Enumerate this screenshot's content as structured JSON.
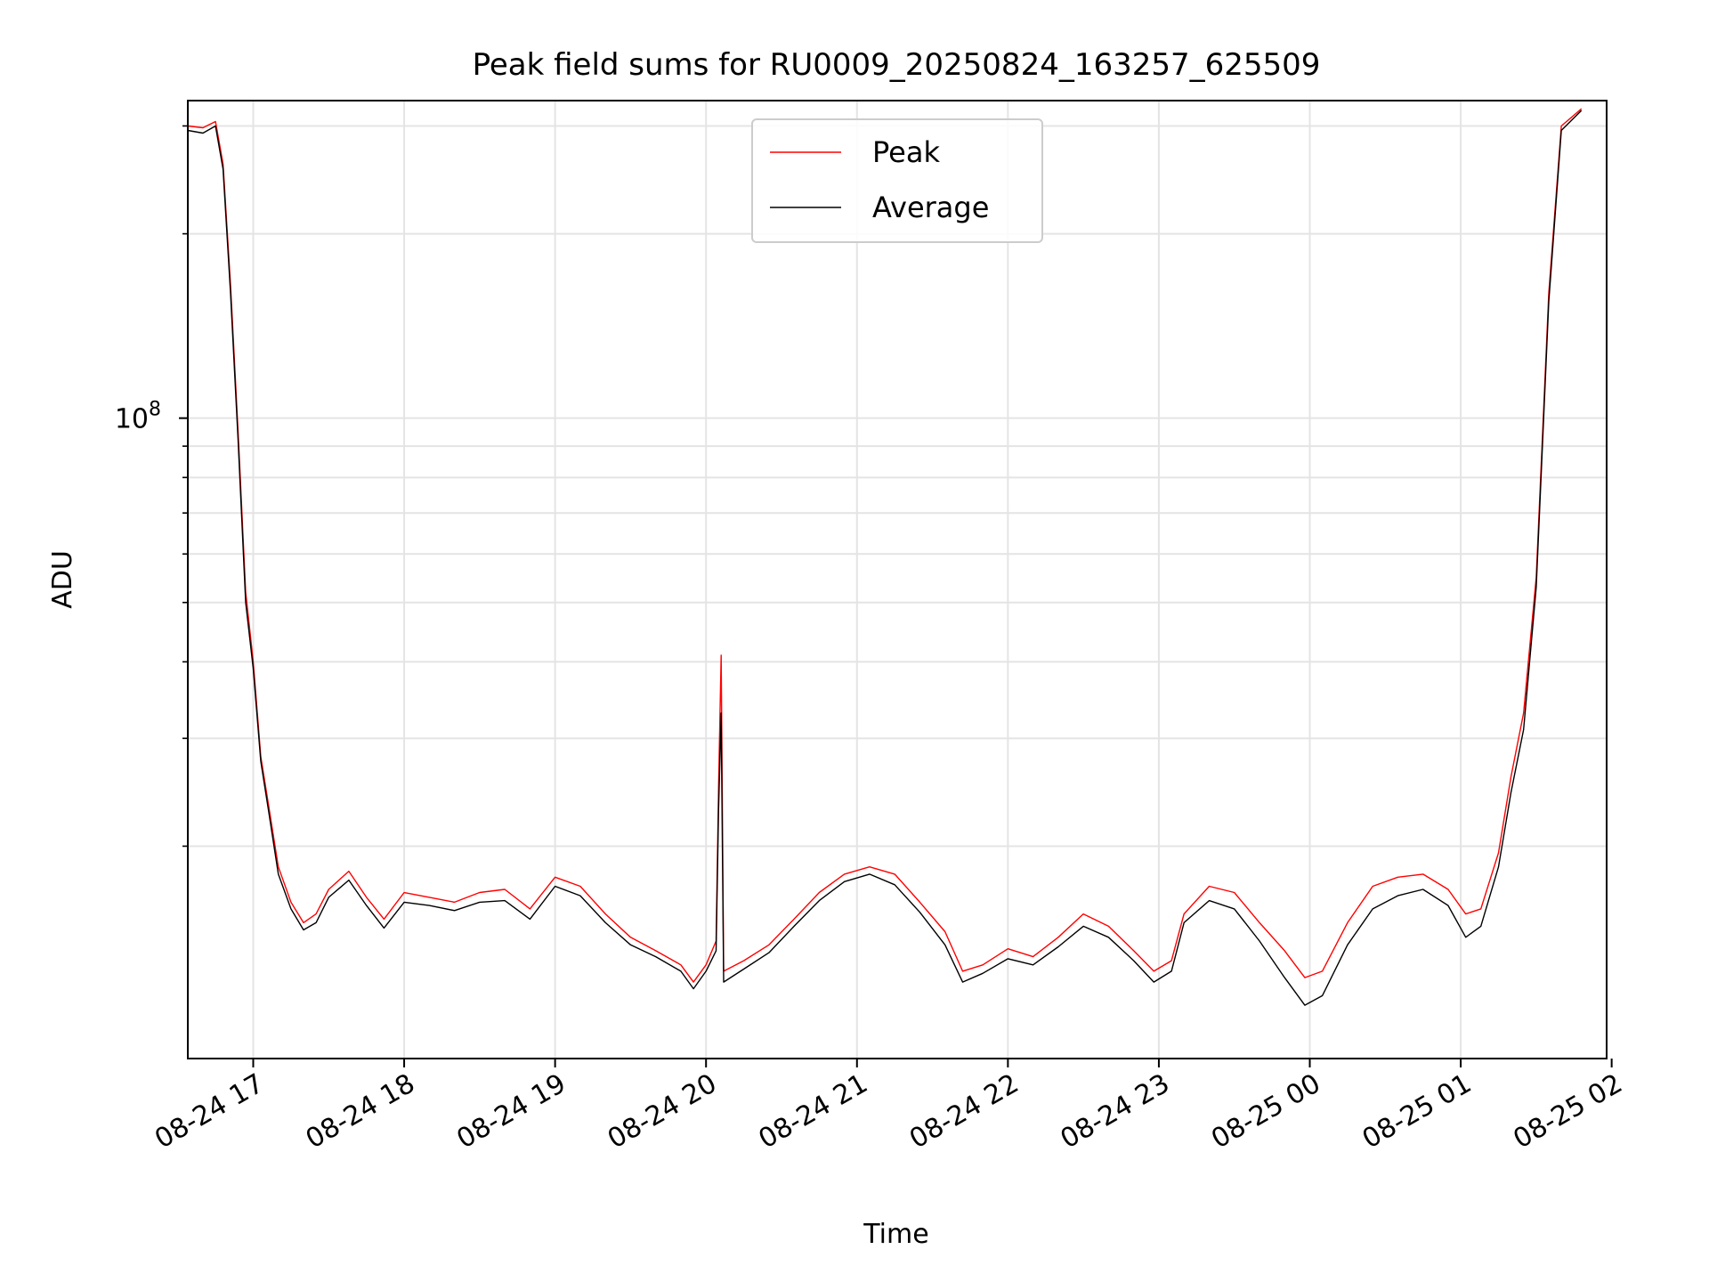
{
  "chart_data": {
    "type": "line",
    "title": "Peak field sums for RU0009_20250824_163257_625509",
    "xlabel": "Time",
    "ylabel": "ADU",
    "yscale": "log",
    "xlim": [
      "2025-08-24 16:34",
      "2025-08-25 01:58"
    ],
    "ylim": [
      9000000.0,
      330000000.0
    ],
    "x_ticks": [
      {
        "time": "2025-08-24 17:00",
        "label": "08-24 17"
      },
      {
        "time": "2025-08-24 18:00",
        "label": "08-24 18"
      },
      {
        "time": "2025-08-24 19:00",
        "label": "08-24 19"
      },
      {
        "time": "2025-08-24 20:00",
        "label": "08-24 20"
      },
      {
        "time": "2025-08-24 21:00",
        "label": "08-24 21"
      },
      {
        "time": "2025-08-24 22:00",
        "label": "08-24 22"
      },
      {
        "time": "2025-08-24 23:00",
        "label": "08-24 23"
      },
      {
        "time": "2025-08-25 00:00",
        "label": "08-25 00"
      },
      {
        "time": "2025-08-25 01:00",
        "label": "08-25 01"
      },
      {
        "time": "2025-08-25 02:00",
        "label": "08-25 02"
      }
    ],
    "y_major_ticks": [
      {
        "value": 100000000,
        "base": "10",
        "exp": "8"
      }
    ],
    "y_minor_ticks": [
      20000000,
      30000000,
      40000000,
      50000000,
      60000000,
      70000000,
      80000000,
      90000000,
      200000000,
      300000000
    ],
    "grid": true,
    "legend": "upper center",
    "series": [
      {
        "name": "Peak",
        "color": "#ff0000",
        "points": [
          [
            "2025-08-24 16:34",
            300000000.0
          ],
          [
            "2025-08-24 16:40",
            298000000.0
          ],
          [
            "2025-08-24 16:45",
            305000000.0
          ],
          [
            "2025-08-24 16:48",
            260000000.0
          ],
          [
            "2025-08-24 16:51",
            165000000.0
          ],
          [
            "2025-08-24 16:54",
            95000000.0
          ],
          [
            "2025-08-24 16:57",
            52000000.0
          ],
          [
            "2025-08-24 17:00",
            40000000.0
          ],
          [
            "2025-08-24 17:03",
            28000000.0
          ],
          [
            "2025-08-24 17:06",
            23500000.0
          ],
          [
            "2025-08-24 17:10",
            18500000.0
          ],
          [
            "2025-08-24 17:15",
            16200000.0
          ],
          [
            "2025-08-24 17:20",
            15000000.0
          ],
          [
            "2025-08-24 17:25",
            15500000.0
          ],
          [
            "2025-08-24 17:30",
            17000000.0
          ],
          [
            "2025-08-24 17:38",
            18200000.0
          ],
          [
            "2025-08-24 17:45",
            16500000.0
          ],
          [
            "2025-08-24 17:52",
            15200000.0
          ],
          [
            "2025-08-24 18:00",
            16800000.0
          ],
          [
            "2025-08-24 18:10",
            16500000.0
          ],
          [
            "2025-08-24 18:20",
            16200000.0
          ],
          [
            "2025-08-24 18:30",
            16800000.0
          ],
          [
            "2025-08-24 18:40",
            17000000.0
          ],
          [
            "2025-08-24 18:50",
            15800000.0
          ],
          [
            "2025-08-24 19:00",
            17800000.0
          ],
          [
            "2025-08-24 19:10",
            17200000.0
          ],
          [
            "2025-08-24 19:20",
            15500000.0
          ],
          [
            "2025-08-24 19:30",
            14200000.0
          ],
          [
            "2025-08-24 19:40",
            13500000.0
          ],
          [
            "2025-08-24 19:50",
            12800000.0
          ],
          [
            "2025-08-24 19:55",
            12000000.0
          ],
          [
            "2025-08-24 20:00",
            12800000.0
          ],
          [
            "2025-08-24 20:04",
            14000000.0
          ],
          [
            "2025-08-24 20:05",
            25000000.0
          ],
          [
            "2025-08-24 20:06",
            41000000.0
          ],
          [
            "2025-08-24 20:07",
            12500000.0
          ],
          [
            "2025-08-24 20:15",
            13000000.0
          ],
          [
            "2025-08-24 20:25",
            13800000.0
          ],
          [
            "2025-08-24 20:35",
            15200000.0
          ],
          [
            "2025-08-24 20:45",
            16800000.0
          ],
          [
            "2025-08-24 20:55",
            18000000.0
          ],
          [
            "2025-08-24 21:05",
            18500000.0
          ],
          [
            "2025-08-24 21:15",
            18000000.0
          ],
          [
            "2025-08-24 21:25",
            16200000.0
          ],
          [
            "2025-08-24 21:35",
            14500000.0
          ],
          [
            "2025-08-24 21:42",
            12500000.0
          ],
          [
            "2025-08-24 21:50",
            12800000.0
          ],
          [
            "2025-08-24 22:00",
            13600000.0
          ],
          [
            "2025-08-24 22:10",
            13200000.0
          ],
          [
            "2025-08-24 22:20",
            14200000.0
          ],
          [
            "2025-08-24 22:30",
            15500000.0
          ],
          [
            "2025-08-24 22:40",
            14800000.0
          ],
          [
            "2025-08-24 22:50",
            13500000.0
          ],
          [
            "2025-08-24 22:58",
            12500000.0
          ],
          [
            "2025-08-24 23:05",
            13000000.0
          ],
          [
            "2025-08-24 23:10",
            15500000.0
          ],
          [
            "2025-08-24 23:20",
            17200000.0
          ],
          [
            "2025-08-24 23:30",
            16800000.0
          ],
          [
            "2025-08-24 23:40",
            15000000.0
          ],
          [
            "2025-08-24 23:50",
            13500000.0
          ],
          [
            "2025-08-24 23:58",
            12200000.0
          ],
          [
            "2025-08-25 00:05",
            12500000.0
          ],
          [
            "2025-08-25 00:15",
            15000000.0
          ],
          [
            "2025-08-25 00:25",
            17200000.0
          ],
          [
            "2025-08-25 00:35",
            17800000.0
          ],
          [
            "2025-08-25 00:45",
            18000000.0
          ],
          [
            "2025-08-25 00:55",
            17000000.0
          ],
          [
            "2025-08-25 01:02",
            15500000.0
          ],
          [
            "2025-08-25 01:08",
            15800000.0
          ],
          [
            "2025-08-25 01:15",
            19500000.0
          ],
          [
            "2025-08-25 01:20",
            26000000.0
          ],
          [
            "2025-08-25 01:25",
            33000000.0
          ],
          [
            "2025-08-25 01:30",
            55000000.0
          ],
          [
            "2025-08-25 01:35",
            160000000.0
          ],
          [
            "2025-08-25 01:40",
            300000000.0
          ],
          [
            "2025-08-25 01:48",
            320000000.0
          ]
        ]
      },
      {
        "name": "Average",
        "color": "#000000",
        "points": [
          [
            "2025-08-24 16:34",
            295000000.0
          ],
          [
            "2025-08-24 16:40",
            292000000.0
          ],
          [
            "2025-08-24 16:45",
            300000000.0
          ],
          [
            "2025-08-24 16:48",
            255000000.0
          ],
          [
            "2025-08-24 16:51",
            160000000.0
          ],
          [
            "2025-08-24 16:54",
            92000000.0
          ],
          [
            "2025-08-24 16:57",
            50000000.0
          ],
          [
            "2025-08-24 17:00",
            39000000.0
          ],
          [
            "2025-08-24 17:03",
            27500000.0
          ],
          [
            "2025-08-24 17:06",
            23000000.0
          ],
          [
            "2025-08-24 17:10",
            18000000.0
          ],
          [
            "2025-08-24 17:15",
            15800000.0
          ],
          [
            "2025-08-24 17:20",
            14600000.0
          ],
          [
            "2025-08-24 17:25",
            15000000.0
          ],
          [
            "2025-08-24 17:30",
            16500000.0
          ],
          [
            "2025-08-24 17:38",
            17600000.0
          ],
          [
            "2025-08-24 17:45",
            16000000.0
          ],
          [
            "2025-08-24 17:52",
            14700000.0
          ],
          [
            "2025-08-24 18:00",
            16200000.0
          ],
          [
            "2025-08-24 18:10",
            16000000.0
          ],
          [
            "2025-08-24 18:20",
            15700000.0
          ],
          [
            "2025-08-24 18:30",
            16200000.0
          ],
          [
            "2025-08-24 18:40",
            16300000.0
          ],
          [
            "2025-08-24 18:50",
            15200000.0
          ],
          [
            "2025-08-24 19:00",
            17200000.0
          ],
          [
            "2025-08-24 19:10",
            16600000.0
          ],
          [
            "2025-08-24 19:20",
            15000000.0
          ],
          [
            "2025-08-24 19:30",
            13800000.0
          ],
          [
            "2025-08-24 19:40",
            13200000.0
          ],
          [
            "2025-08-24 19:50",
            12500000.0
          ],
          [
            "2025-08-24 19:55",
            11700000.0
          ],
          [
            "2025-08-24 20:00",
            12500000.0
          ],
          [
            "2025-08-24 20:04",
            13500000.0
          ],
          [
            "2025-08-24 20:05",
            23000000.0
          ],
          [
            "2025-08-24 20:06",
            33000000.0
          ],
          [
            "2025-08-24 20:07",
            12000000.0
          ],
          [
            "2025-08-24 20:15",
            12600000.0
          ],
          [
            "2025-08-24 20:25",
            13400000.0
          ],
          [
            "2025-08-24 20:35",
            14800000.0
          ],
          [
            "2025-08-24 20:45",
            16300000.0
          ],
          [
            "2025-08-24 20:55",
            17500000.0
          ],
          [
            "2025-08-24 21:05",
            18000000.0
          ],
          [
            "2025-08-24 21:15",
            17300000.0
          ],
          [
            "2025-08-24 21:25",
            15600000.0
          ],
          [
            "2025-08-24 21:35",
            13800000.0
          ],
          [
            "2025-08-24 21:42",
            12000000.0
          ],
          [
            "2025-08-24 21:50",
            12400000.0
          ],
          [
            "2025-08-24 22:00",
            13100000.0
          ],
          [
            "2025-08-24 22:10",
            12800000.0
          ],
          [
            "2025-08-24 22:20",
            13700000.0
          ],
          [
            "2025-08-24 22:30",
            14800000.0
          ],
          [
            "2025-08-24 22:40",
            14200000.0
          ],
          [
            "2025-08-24 22:50",
            13000000.0
          ],
          [
            "2025-08-24 22:58",
            12000000.0
          ],
          [
            "2025-08-24 23:05",
            12500000.0
          ],
          [
            "2025-08-24 23:10",
            15000000.0
          ],
          [
            "2025-08-24 23:20",
            16300000.0
          ],
          [
            "2025-08-24 23:30",
            15800000.0
          ],
          [
            "2025-08-24 23:40",
            14000000.0
          ],
          [
            "2025-08-24 23:50",
            12200000.0
          ],
          [
            "2025-08-24 23:58",
            11000000.0
          ],
          [
            "2025-08-25 00:05",
            11400000.0
          ],
          [
            "2025-08-25 00:15",
            13800000.0
          ],
          [
            "2025-08-25 00:25",
            15800000.0
          ],
          [
            "2025-08-25 00:35",
            16600000.0
          ],
          [
            "2025-08-25 00:45",
            17000000.0
          ],
          [
            "2025-08-25 00:55",
            16000000.0
          ],
          [
            "2025-08-25 01:02",
            14200000.0
          ],
          [
            "2025-08-25 01:08",
            14800000.0
          ],
          [
            "2025-08-25 01:15",
            18500000.0
          ],
          [
            "2025-08-25 01:20",
            24500000.0
          ],
          [
            "2025-08-25 01:25",
            31000000.0
          ],
          [
            "2025-08-25 01:30",
            53000000.0
          ],
          [
            "2025-08-25 01:35",
            155000000.0
          ],
          [
            "2025-08-25 01:40",
            295000000.0
          ],
          [
            "2025-08-25 01:48",
            318000000.0
          ]
        ]
      }
    ]
  }
}
